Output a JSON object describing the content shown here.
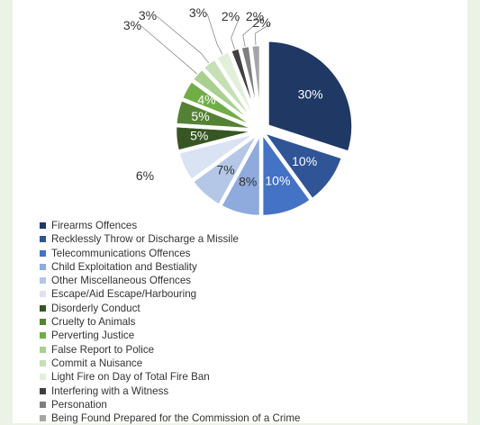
{
  "chart_data": {
    "type": "pie",
    "slices": [
      {
        "label": "Firearms Offences",
        "value": 30,
        "value_label": "30%",
        "color": "#1f3864",
        "exploded": true
      },
      {
        "label": "Recklessly Throw or Discharge a Missile",
        "value": 10,
        "value_label": "10%",
        "color": "#2f5597"
      },
      {
        "label": "Telecommunications Offences",
        "value": 10,
        "value_label": "10%",
        "color": "#4472c4"
      },
      {
        "label": "Child Exploitation and Bestiality",
        "value": 8,
        "value_label": "8%",
        "color": "#8faadc"
      },
      {
        "label": "Other Miscellaneous Offences",
        "value": 7,
        "value_label": "7%",
        "color": "#b4c7e7"
      },
      {
        "label": "Escape/Aid Escape/Harbouring",
        "value": 6,
        "value_label": "6%",
        "color": "#dae3f3"
      },
      {
        "label": "Disorderly Conduct",
        "value": 5,
        "value_label": "5%",
        "color": "#375623"
      },
      {
        "label": "Cruelty to Animals",
        "value": 5,
        "value_label": "5%",
        "color": "#548235"
      },
      {
        "label": "Perverting Justice",
        "value": 4,
        "value_label": "4%",
        "color": "#70ad47"
      },
      {
        "label": "False Report to Police",
        "value": 3,
        "value_label": "3%",
        "color": "#a9d08e"
      },
      {
        "label": "Commit a Nuisance",
        "value": 3,
        "value_label": "3%",
        "color": "#c5e0b4"
      },
      {
        "label": "Light Fire on Day of Total Fire Ban",
        "value": 3,
        "value_label": "3%",
        "color": "#e2efda"
      },
      {
        "label": "Interfering with a Witness",
        "value": 2,
        "value_label": "2%",
        "color": "#404040"
      },
      {
        "label": "Personation",
        "value": 2,
        "value_label": "2%",
        "color": "#7f7f7f"
      },
      {
        "label": "Being Found Prepared for the Commission of a Crime",
        "value": 2,
        "value_label": "2%",
        "color": "#a6a6a6"
      }
    ],
    "legend_position": "bottom-left"
  }
}
